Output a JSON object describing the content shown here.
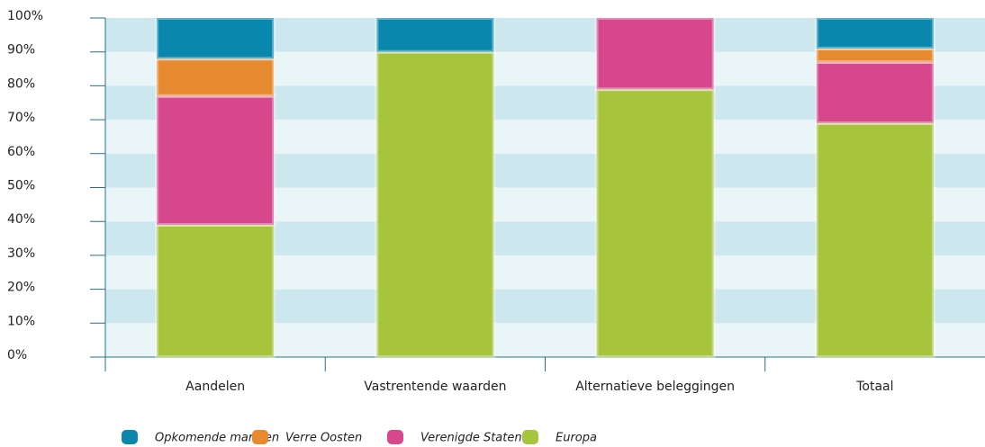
{
  "chart_data": {
    "type": "stacked_bar",
    "categories": [
      "Aandelen",
      "Vastrentende waarden",
      "Alternatieve beleggingen",
      "Totaal"
    ],
    "series": [
      {
        "name": "Opkomende markten",
        "color": "#0a87ad",
        "values": [
          12,
          10,
          0,
          9
        ]
      },
      {
        "name": "Verre Oosten",
        "color": "#e6892f",
        "values": [
          11,
          0,
          0,
          4
        ]
      },
      {
        "name": "Verenigde Staten",
        "color": "#d6478c",
        "values": [
          38,
          0,
          21,
          18
        ]
      },
      {
        "name": "Europa",
        "color": "#a7c43d",
        "values": [
          39,
          90,
          79,
          69
        ]
      }
    ],
    "ylim": [
      0,
      100
    ],
    "yticks": [
      {
        "value": 0,
        "label": "0%"
      },
      {
        "value": 10,
        "label": "10%"
      },
      {
        "value": 20,
        "label": "20%"
      },
      {
        "value": 30,
        "label": "30%"
      },
      {
        "value": 40,
        "label": "40%"
      },
      {
        "value": 50,
        "label": "50%"
      },
      {
        "value": 60,
        "label": "60%"
      },
      {
        "value": 70,
        "label": "70%"
      },
      {
        "value": 80,
        "label": "80%"
      },
      {
        "value": 90,
        "label": "90%"
      },
      {
        "value": 100,
        "label": "100%"
      }
    ],
    "grid": true,
    "grid_colors": [
      "#eaf5f8",
      "#cde7ef"
    ],
    "legend": "bottom"
  }
}
